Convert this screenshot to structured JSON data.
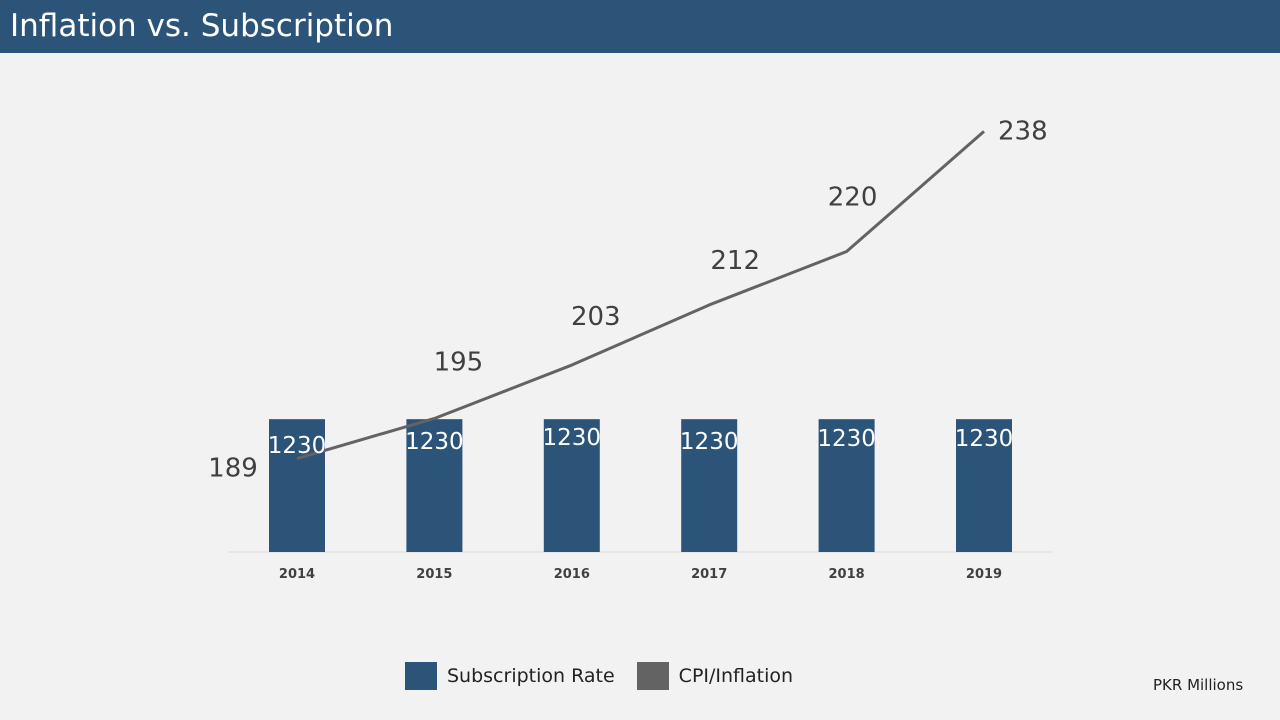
{
  "header": {
    "title": "Inflation vs. Subscription"
  },
  "colors": {
    "title_bar": "#2c5479",
    "bars": "#2c5479",
    "line": "#636363",
    "background": "#f2f2f2"
  },
  "units_note": "PKR Millions",
  "chart_data": {
    "type": "bar",
    "categories": [
      "2014",
      "2015",
      "2016",
      "2017",
      "2018",
      "2019"
    ],
    "series": [
      {
        "name": "Subscription Rate",
        "type": "bar",
        "values": [
          1230,
          1230,
          1230,
          1230,
          1230,
          1230
        ]
      },
      {
        "name": "CPI/Inflation",
        "type": "line",
        "values": [
          189,
          195,
          203,
          212,
          220,
          238
        ]
      }
    ],
    "legend_position": "bottom",
    "grid": false
  }
}
